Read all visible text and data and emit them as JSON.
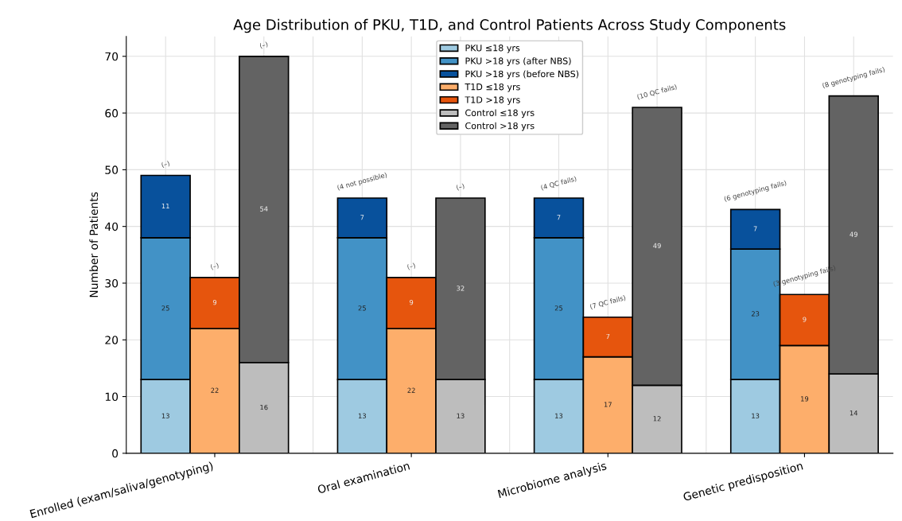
{
  "chart_data": {
    "type": "bar",
    "title": "Age Distribution of PKU, T1D, and Control Patients Across Study Components",
    "ylabel": "Number of Patients",
    "categories": [
      null,
      "Enrolled (exam/saliva/genotyping)",
      null,
      null,
      null,
      "Oral examination",
      null,
      null,
      null,
      "Microbiome analysis",
      null,
      null,
      null,
      "Genetic predisposition",
      null
    ],
    "stacked": true,
    "data_labels": true,
    "grid": true,
    "legend": "top",
    "ylim": [
      0,
      73.5
    ],
    "yticks": [
      0,
      10,
      20,
      30,
      40,
      50,
      60,
      70
    ],
    "series": [
      {
        "name": "PKU ≤18 yrs",
        "color": "#9ecae1",
        "values": [
          13,
          null,
          null,
          null,
          13,
          null,
          null,
          null,
          13,
          null,
          null,
          null,
          13,
          null,
          null
        ]
      },
      {
        "name": "PKU >18 yrs (after NBS)",
        "color": "#4292c6",
        "values": [
          25,
          null,
          null,
          null,
          25,
          null,
          null,
          null,
          25,
          null,
          null,
          null,
          23,
          null,
          null
        ]
      },
      {
        "name": "PKU >18 yrs (before NBS)",
        "color": "#08519c",
        "values": [
          11,
          null,
          null,
          null,
          7,
          null,
          null,
          null,
          7,
          null,
          null,
          null,
          7,
          null,
          null
        ]
      },
      {
        "name": "T1D ≤18 yrs",
        "color": "#fdae6b",
        "values": [
          null,
          22,
          null,
          null,
          null,
          22,
          null,
          null,
          null,
          17,
          null,
          null,
          null,
          19,
          null
        ]
      },
      {
        "name": "T1D >18 yrs",
        "color": "#e6550d",
        "values": [
          null,
          9,
          null,
          null,
          null,
          9,
          null,
          null,
          null,
          7,
          null,
          null,
          null,
          9,
          null
        ]
      },
      {
        "name": "Control ≤18 yrs",
        "color": "#bdbdbd",
        "values": [
          null,
          null,
          16,
          null,
          null,
          null,
          13,
          null,
          null,
          null,
          12,
          null,
          null,
          null,
          14
        ]
      },
      {
        "name": "Control >18 yrs",
        "color": "#636363",
        "values": [
          null,
          null,
          54,
          null,
          null,
          null,
          32,
          null,
          null,
          null,
          49,
          null,
          null,
          null,
          49
        ]
      }
    ],
    "annotations": [
      {
        "text": "(–)",
        "y": 49
      },
      {
        "text": "(–)",
        "y": 31
      },
      {
        "text": "(–)",
        "y": 70
      },
      {
        "text": "(4 not possible)",
        "y": 45
      },
      {
        "text": "(–)",
        "y": 31
      },
      {
        "text": "(–)",
        "y": 45
      },
      {
        "text": "(4 QC fails)",
        "y": 45
      },
      {
        "text": "(7 QC fails)",
        "y": 24
      },
      {
        "text": "(10 QC fails)",
        "y": 61
      },
      {
        "text": "(6 genotyping fails)",
        "y": 43
      },
      {
        "text": "(3 genotyping fails)",
        "y": 28
      },
      {
        "text": "(8 genotyping fails)",
        "y": 63
      }
    ]
  }
}
